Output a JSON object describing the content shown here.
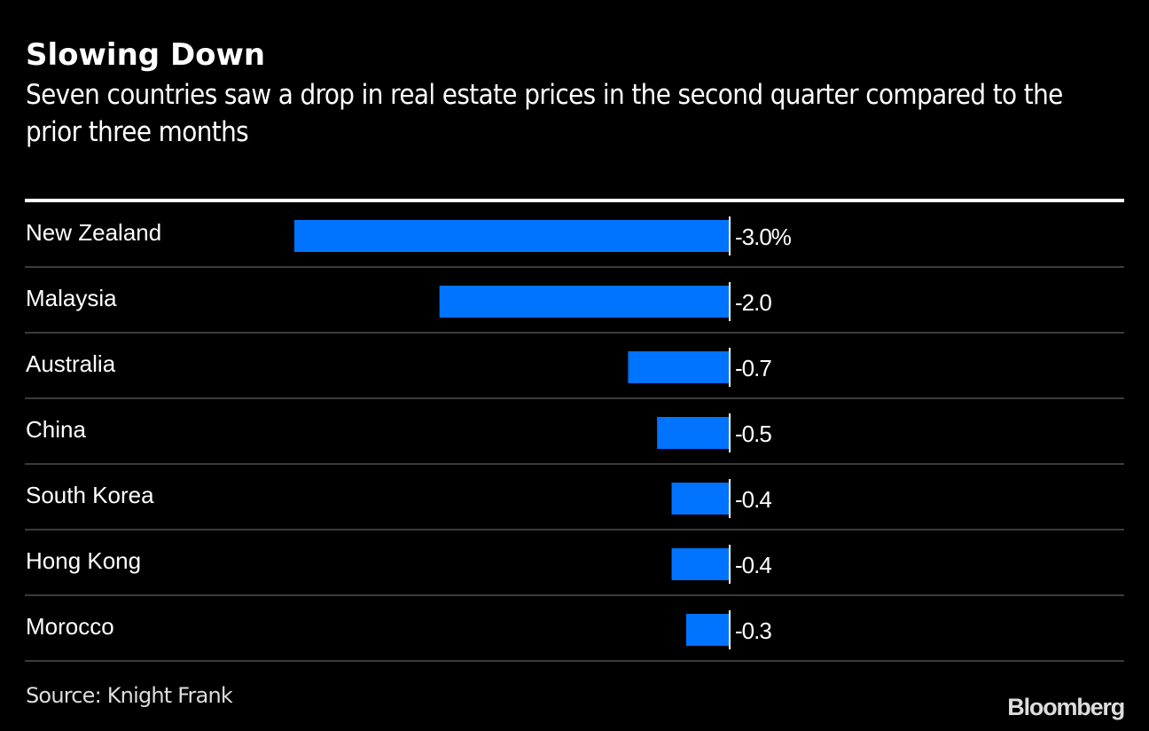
{
  "chart_data": {
    "type": "bar",
    "orientation": "horizontal",
    "title": "Slowing Down",
    "subtitle": "Seven countries saw a drop in real estate prices in the second quarter compared to the prior three months",
    "categories": [
      "New Zealand",
      "Malaysia",
      "Australia",
      "China",
      "South Korea",
      "Hong Kong",
      "Morocco"
    ],
    "values": [
      -3.0,
      -2.0,
      -0.7,
      -0.5,
      -0.4,
      -0.4,
      -0.3
    ],
    "value_labels": [
      "-3.0%",
      "-2.0",
      "-0.7",
      "-0.5",
      "-0.4",
      "-0.4",
      "-0.3"
    ],
    "xlim": [
      -3.0,
      0
    ],
    "xlabel": "",
    "ylabel": "",
    "unit": "%",
    "grid": false,
    "bar_color": "#0073ff",
    "source": "Source: Knight Frank"
  },
  "brand": "Bloomberg"
}
